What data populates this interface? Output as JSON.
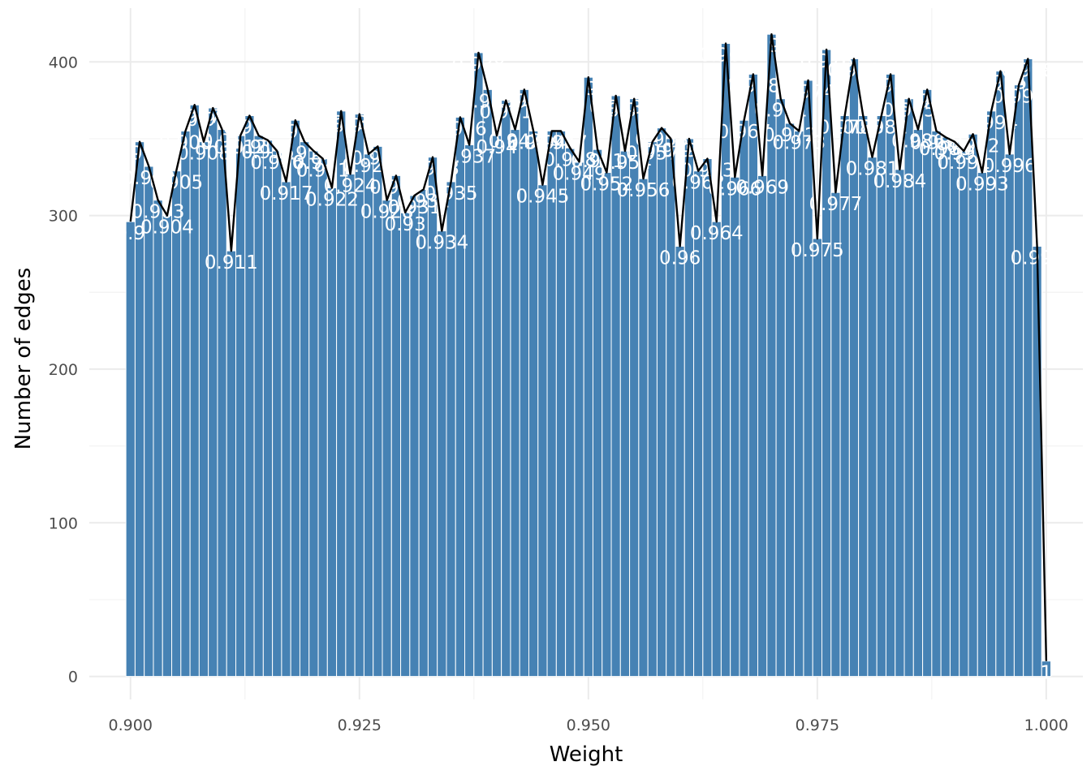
{
  "chart_data": {
    "type": "bar",
    "xlabel": "Weight",
    "ylabel": "Number of edges",
    "xlim": [
      0.8955,
      1.004
    ],
    "ylim": [
      -15,
      435
    ],
    "x_ticks": [
      0.9,
      0.925,
      0.95,
      0.975,
      1.0
    ],
    "x_tick_labels": [
      "0.900",
      "0.925",
      "0.950",
      "0.975",
      "1.000"
    ],
    "y_ticks": [
      0,
      100,
      200,
      300,
      400
    ],
    "y_tick_labels": [
      "0",
      "100",
      "200",
      "300",
      "400"
    ],
    "grid": true,
    "bar_color": "#4682b4",
    "line_color": "#000000",
    "label_color": "#ffffff",
    "x": [
      0.9,
      0.901,
      0.902,
      0.903,
      0.904,
      0.905,
      0.906,
      0.907,
      0.908,
      0.909,
      0.91,
      0.911,
      0.912,
      0.913,
      0.914,
      0.915,
      0.916,
      0.917,
      0.918,
      0.919,
      0.92,
      0.921,
      0.922,
      0.923,
      0.924,
      0.925,
      0.926,
      0.927,
      0.928,
      0.929,
      0.93,
      0.931,
      0.932,
      0.933,
      0.934,
      0.935,
      0.936,
      0.937,
      0.938,
      0.939,
      0.94,
      0.941,
      0.942,
      0.943,
      0.944,
      0.945,
      0.946,
      0.947,
      0.948,
      0.949,
      0.95,
      0.951,
      0.952,
      0.953,
      0.954,
      0.955,
      0.956,
      0.957,
      0.958,
      0.959,
      0.96,
      0.961,
      0.962,
      0.963,
      0.964,
      0.965,
      0.966,
      0.967,
      0.968,
      0.969,
      0.97,
      0.971,
      0.972,
      0.973,
      0.974,
      0.975,
      0.976,
      0.977,
      0.978,
      0.979,
      0.98,
      0.981,
      0.982,
      0.983,
      0.984,
      0.985,
      0.986,
      0.987,
      0.988,
      0.989,
      0.99,
      0.991,
      0.992,
      0.993,
      0.994,
      0.995,
      0.996,
      0.997,
      0.998,
      0.999,
      1.0
    ],
    "values": [
      296,
      348,
      332,
      310,
      300,
      329,
      355,
      372,
      348,
      370,
      356,
      277,
      352,
      365,
      352,
      349,
      342,
      322,
      362,
      348,
      342,
      337,
      318,
      368,
      327,
      366,
      340,
      345,
      310,
      326,
      302,
      313,
      317,
      338,
      290,
      322,
      364,
      346,
      406,
      382,
      352,
      375,
      356,
      382,
      355,
      320,
      355,
      355,
      344,
      335,
      390,
      343,
      328,
      378,
      342,
      376,
      324,
      348,
      357,
      350,
      280,
      350,
      329,
      337,
      296,
      412,
      325,
      362,
      392,
      326,
      418,
      376,
      360,
      355,
      388,
      285,
      408,
      315,
      365,
      402,
      365,
      338,
      365,
      392,
      330,
      376,
      356,
      382,
      355,
      351,
      348,
      342,
      353,
      328,
      368,
      394,
      340,
      385,
      402,
      280,
      10
    ],
    "labels": [
      "0.9",
      "0.901",
      "0.902",
      "0.903",
      "0.904",
      "0.905",
      "0.906",
      "0.907",
      "0.908",
      "0.909",
      "0.91",
      "0.911",
      "0.912",
      "0.913",
      "0.914",
      "0.915",
      "0.916",
      "0.917",
      "0.918",
      "0.919",
      "0.92",
      "0.921",
      "0.922",
      "0.923",
      "0.924",
      "0.925",
      "0.926",
      "0.927",
      "0.928",
      "0.929",
      "0.93",
      "0.931",
      "0.932",
      "0.933",
      "0.934",
      "0.935",
      "0.936",
      "0.937",
      "0.938",
      "0.939",
      "0.94",
      "0.941",
      "0.942",
      "0.943",
      "0.944",
      "0.945",
      "0.946",
      "0.947",
      "0.948",
      "0.949",
      "0.95",
      "0.951",
      "0.952",
      "0.953",
      "0.954",
      "0.955",
      "0.956",
      "0.957",
      "0.958",
      "0.959",
      "0.96",
      "0.961",
      "0.962",
      "0.963",
      "0.964",
      "0.965",
      "0.966",
      "0.967",
      "0.968",
      "0.969",
      "0.97",
      "0.971",
      "0.972",
      "0.973",
      "0.974",
      "0.975",
      "0.976",
      "0.977",
      "0.978",
      "0.979",
      "0.98",
      "0.981",
      "0.982",
      "0.983",
      "0.984",
      "0.985",
      "0.986",
      "0.987",
      "0.988",
      "0.989",
      "0.99",
      "0.991",
      "0.992",
      "0.993",
      "0.994",
      "0.995",
      "0.996",
      "0.997",
      "0.998",
      "0.999",
      "1"
    ]
  }
}
